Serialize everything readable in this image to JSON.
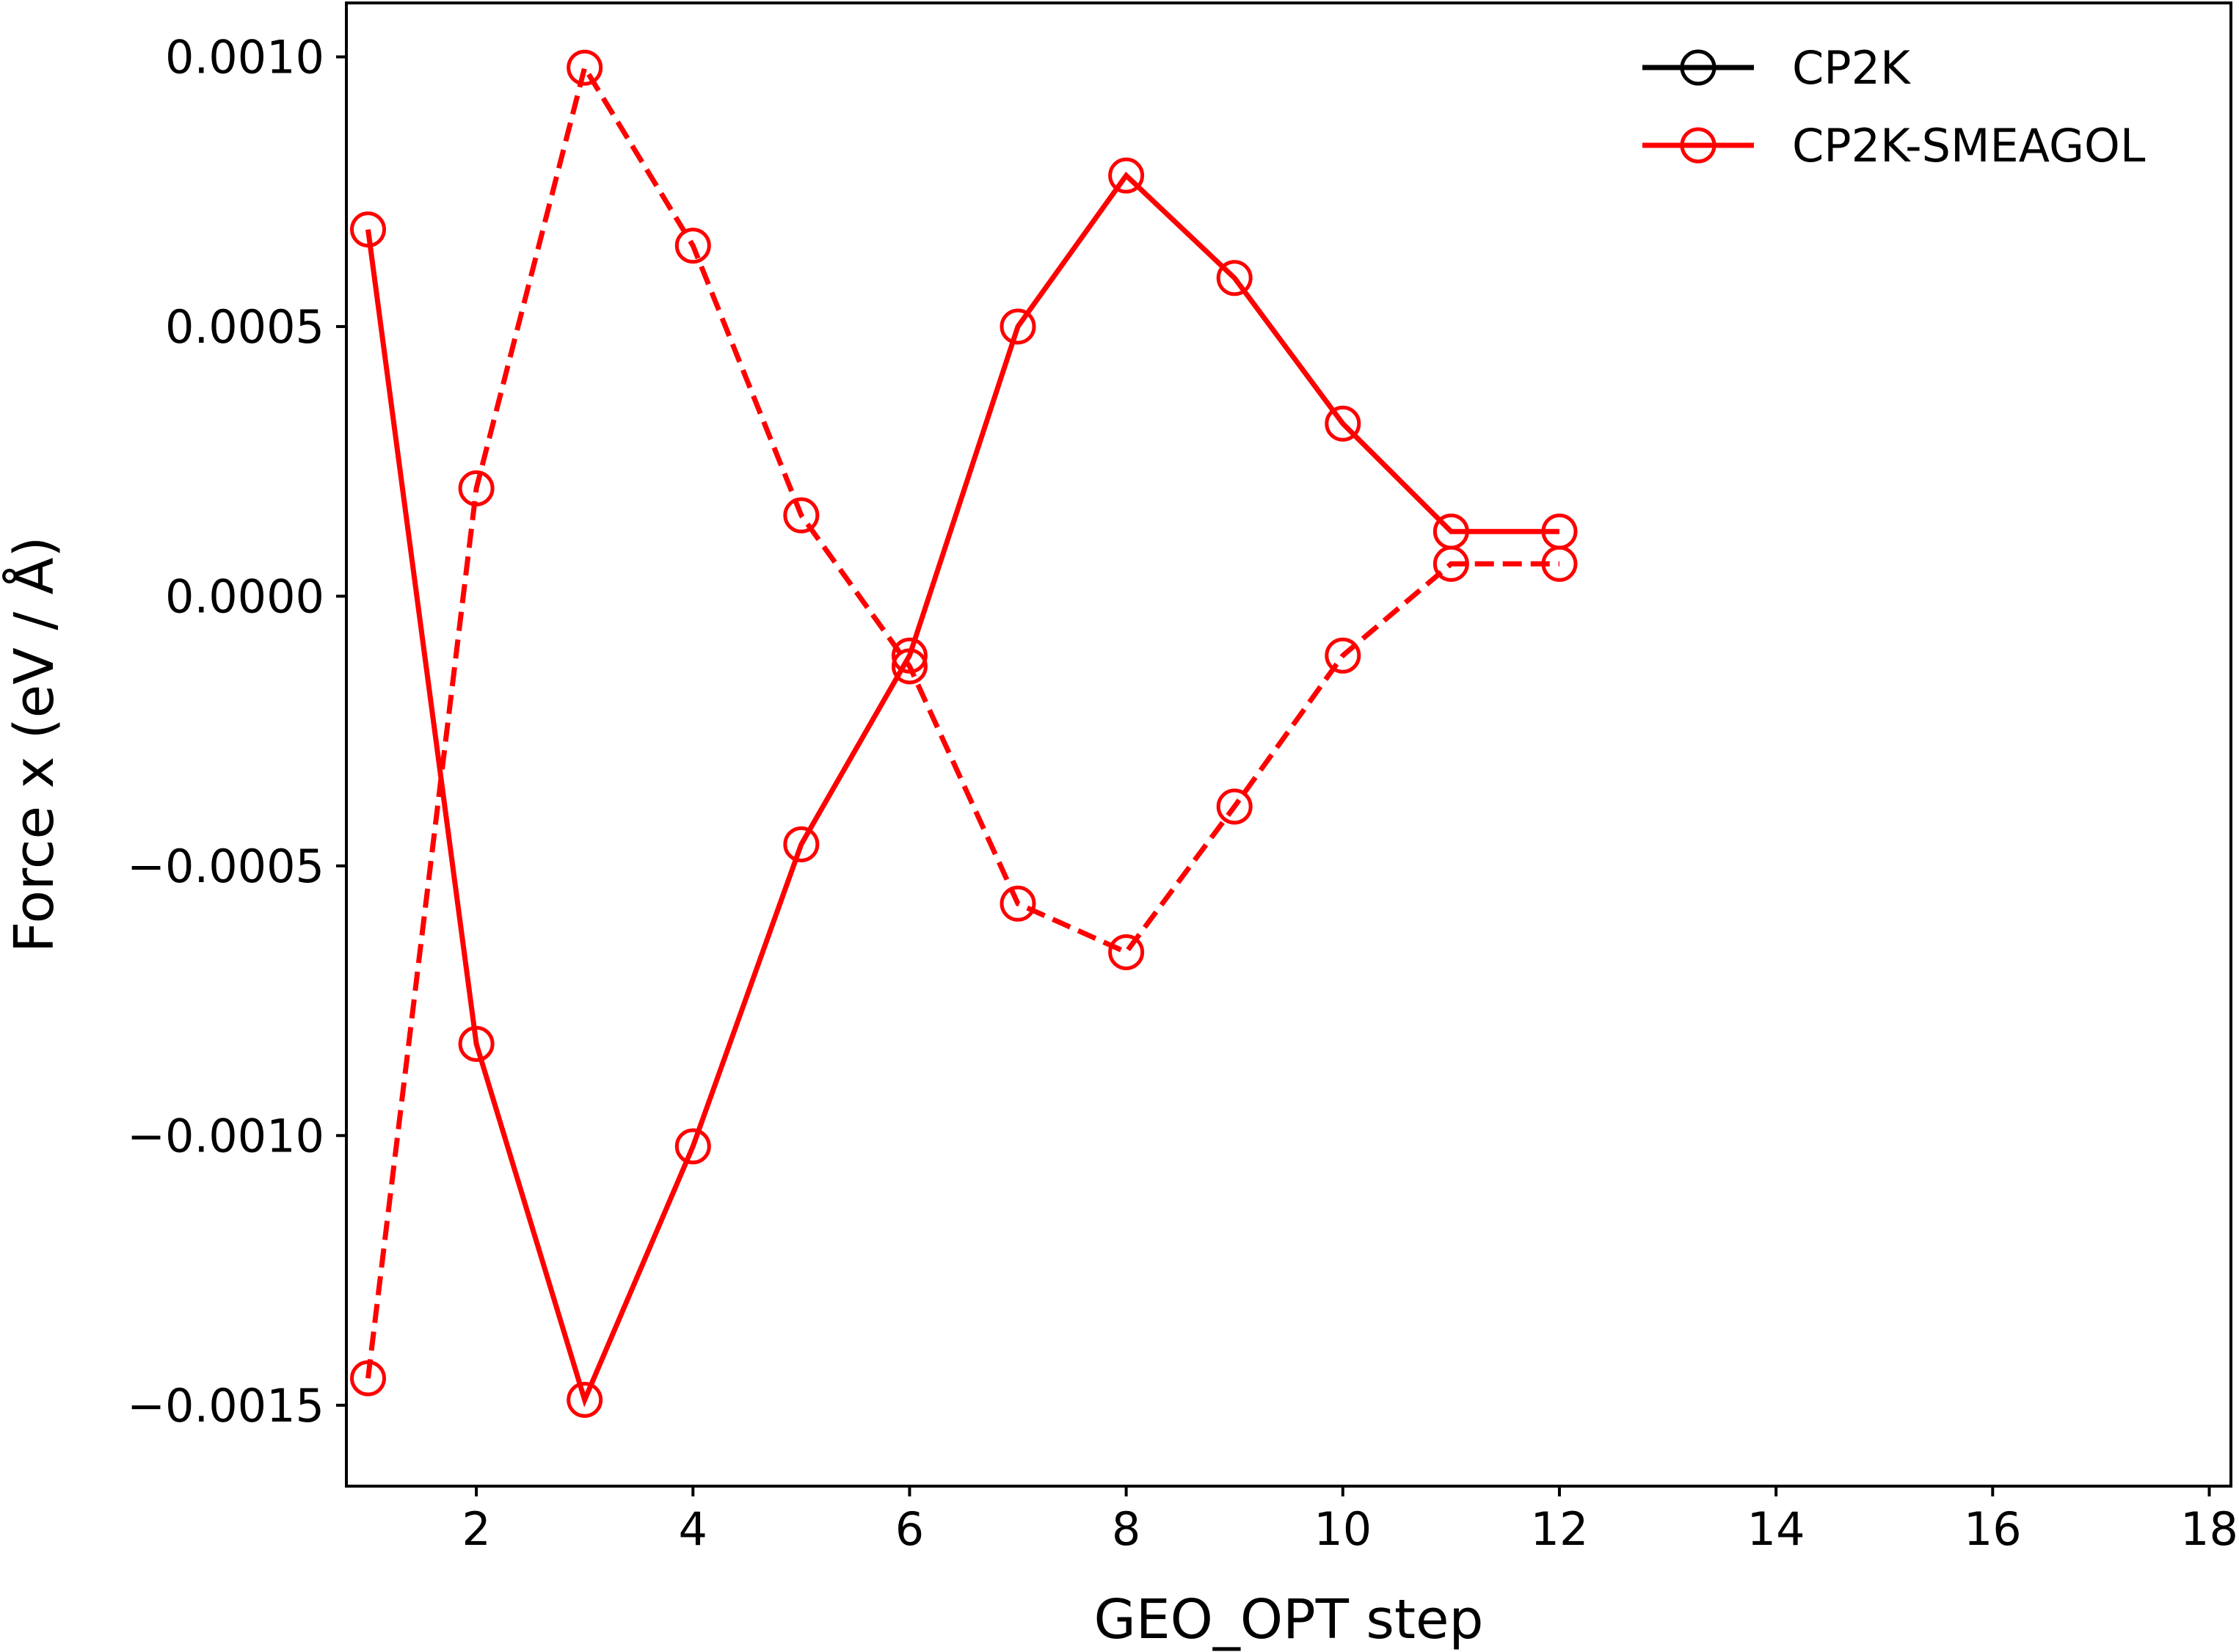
{
  "chart_data": {
    "type": "line",
    "xlabel": "GEO_OPT step",
    "ylabel": "Force x (eV / Å)",
    "xlim": [
      0.8,
      18.2
    ],
    "ylim": [
      -0.00165,
      0.0011
    ],
    "x_ticks": [
      2,
      4,
      6,
      8,
      10,
      12,
      14,
      16,
      18
    ],
    "x_tick_labels": [
      "2",
      "4",
      "6",
      "8",
      "10",
      "12",
      "14",
      "16",
      "18"
    ],
    "y_ticks": [
      0.001,
      0.0005,
      0.0,
      -0.0005,
      -0.001,
      -0.0015
    ],
    "y_tick_labels": [
      "0.0010",
      "0.0005",
      "0.0000",
      "−0.0005",
      "−0.0010",
      "−0.0015"
    ],
    "grid": false,
    "legend_position": "top-right",
    "legend": [
      {
        "label": "CP2K",
        "color": "#000000"
      },
      {
        "label": "CP2K-SMEAGOL",
        "color": "#ff0000"
      }
    ],
    "series": [
      {
        "style": "solid",
        "color": "#ff0000",
        "marker": "open-circle",
        "x": [
          1,
          2,
          3,
          4,
          5,
          6,
          7,
          8,
          9,
          10,
          11,
          12
        ],
        "y": [
          0.00068,
          -0.00083,
          -0.00149,
          -0.00102,
          -0.00046,
          -0.00011,
          0.0005,
          0.00078,
          0.00059,
          0.00032,
          0.00012,
          0.00012
        ]
      },
      {
        "style": "dashed",
        "color": "#ff0000",
        "marker": "open-circle",
        "x": [
          1,
          2,
          3,
          4,
          5,
          6,
          7,
          8,
          9,
          10,
          11,
          12
        ],
        "y": [
          -0.00145,
          0.0002,
          0.00098,
          0.00065,
          0.00015,
          -0.00013,
          -0.00057,
          -0.00066,
          -0.00039,
          -0.00011,
          6e-05,
          6e-05
        ]
      }
    ]
  }
}
